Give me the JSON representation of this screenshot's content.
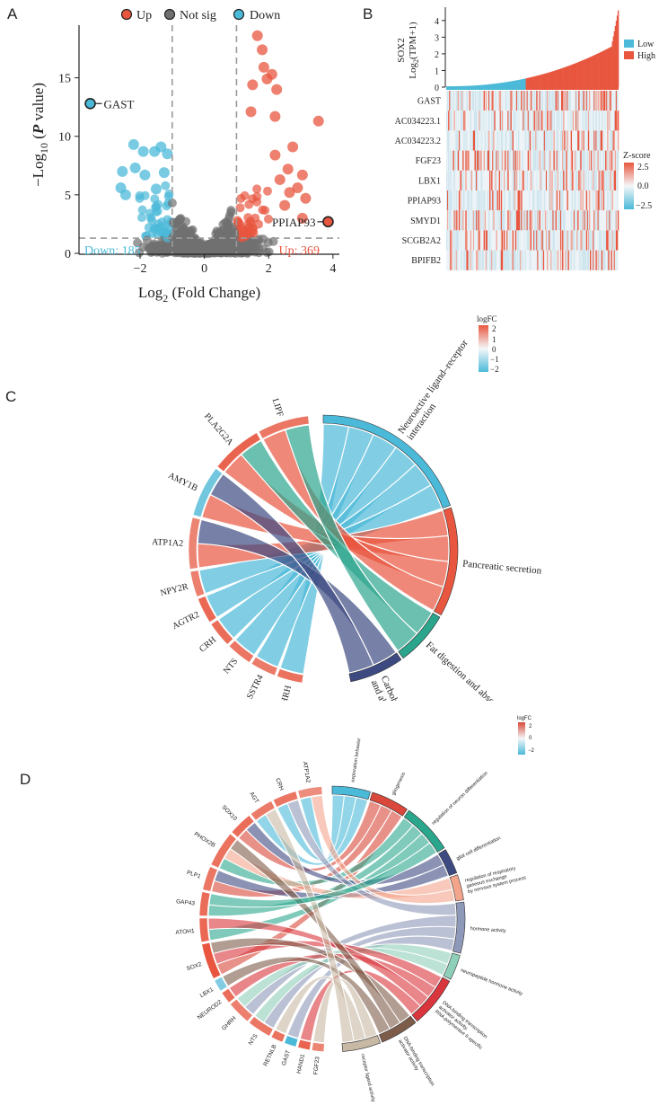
{
  "panels": {
    "a": "A",
    "b": "B",
    "c": "C",
    "d": "D"
  },
  "chart_data": [
    {
      "type": "scatter",
      "title": "",
      "legend": [
        "Up",
        "Not sig",
        "Down"
      ],
      "colors": {
        "up": "#e8563f",
        "notsig": "#707070",
        "down": "#4bb9d8"
      },
      "xlabel_main": "Log",
      "xlabel_sub": "2",
      "xlabel_rest": " (Fold Change)",
      "ylabel_pre": "−Log",
      "ylabel_sub": "10",
      "ylabel_open": " (",
      "ylabel_p": "P",
      "ylabel_post": " value)",
      "xlim": [
        -3.9,
        4.2
      ],
      "ylim": [
        0,
        19.5
      ],
      "xticks": [
        -2,
        0,
        2,
        4
      ],
      "xtick_labels": [
        "−2",
        "0",
        "2",
        "4"
      ],
      "yticks": [
        0,
        5,
        10,
        15
      ],
      "ytick_labels": [
        "0",
        "5",
        "10",
        "15"
      ],
      "fc_cutoff": 1,
      "p_cutoff": 1.3,
      "down_count_label": "Down: 185",
      "up_count_label": "Up: 369",
      "labeled_points": [
        {
          "label": "GAST",
          "x": -3.55,
          "y": 12.8,
          "group": "down"
        },
        {
          "label": "PPIAP93",
          "x": 3.85,
          "y": 2.7,
          "group": "up"
        }
      ],
      "highlight_points": [
        {
          "x": 1.65,
          "y": 18.6
        },
        {
          "x": 1.8,
          "y": 17.4
        },
        {
          "x": 1.85,
          "y": 15.9
        },
        {
          "x": 2.1,
          "y": 15.3
        },
        {
          "x": 1.95,
          "y": 14.9
        },
        {
          "x": 1.5,
          "y": 14.4
        },
        {
          "x": 2.25,
          "y": 14.0
        },
        {
          "x": 3.55,
          "y": 11.3
        },
        {
          "x": 2.2,
          "y": 11.7
        },
        {
          "x": 1.45,
          "y": 12.1
        },
        {
          "x": 2.75,
          "y": 9.1
        },
        {
          "x": 2.6,
          "y": 7.2
        },
        {
          "x": 3.05,
          "y": 6.7
        },
        {
          "x": 2.35,
          "y": 6.3
        },
        {
          "x": 2.9,
          "y": 5.6
        },
        {
          "x": 2.65,
          "y": 5.2
        },
        {
          "x": 3.15,
          "y": 4.7
        },
        {
          "x": 2.5,
          "y": 4.1
        },
        {
          "x": 3.05,
          "y": 3.0
        },
        {
          "x": 2.2,
          "y": 8.4
        },
        {
          "x": -1.35,
          "y": 9.1
        },
        {
          "x": -1.15,
          "y": 8.5
        },
        {
          "x": -1.55,
          "y": 8.7
        },
        {
          "x": -2.2,
          "y": 9.3
        },
        {
          "x": -1.9,
          "y": 8.7
        },
        {
          "x": -2.15,
          "y": 7.3
        },
        {
          "x": -2.55,
          "y": 7.0
        },
        {
          "x": -1.85,
          "y": 6.7
        },
        {
          "x": -2.6,
          "y": 5.6
        },
        {
          "x": -2.45,
          "y": 5.0
        },
        {
          "x": -1.5,
          "y": 5.5
        },
        {
          "x": -1.25,
          "y": 6.9
        }
      ]
    },
    {
      "type": "heatmap",
      "top_ylabel_gene": "SOX2",
      "top_ylabel_pre": "Log",
      "top_ylabel_sub": "2",
      "top_ylabel_post": "(TPM+1)",
      "top_yticks": [
        0,
        1,
        2,
        3,
        4
      ],
      "top_ylim": [
        0,
        4.8
      ],
      "low_fraction": 0.46,
      "legend_groups": [
        "Low",
        "High"
      ],
      "group_colors": [
        "#4bb9d8",
        "#e8563f"
      ],
      "rows": [
        "GAST",
        "AC034223.1",
        "AC034223.2",
        "FGF23",
        "LBX1",
        "PPIAP93",
        "SMYD1",
        "SCGB2A2",
        "BPIFB2"
      ],
      "colorbar_title": "Z-score",
      "colorbar_ticks": [
        2.5,
        0.0,
        -2.5
      ],
      "colorbar_tick_labels": [
        "2.5",
        "0.0",
        "−2.5"
      ],
      "n_samples": 180
    },
    {
      "type": "chord",
      "terms": [
        {
          "name": "Neuroactive ligand–receptor interaction",
          "name_line1": "Neuroactive ligand–receptor",
          "name_line2": "interaction",
          "color": "#4bb9d8"
        },
        {
          "name": "Pancreatic secretion",
          "name_line1": "Pancreatic secretion",
          "name_line2": "",
          "color": "#e8563f"
        },
        {
          "name": "Fat digestion and absorption",
          "name_line1": "Fat digestion and absorption",
          "name_line2": "",
          "color": "#2ca58d"
        },
        {
          "name": "Carbohydrate digest and absorption",
          "name_line1": "Carbohydrate digest",
          "name_line2": "and absorption",
          "color": "#3d4a82"
        }
      ],
      "genes": [
        {
          "name": "GHRH",
          "logFC": 1.6
        },
        {
          "name": "SSTR4",
          "logFC": 1.4
        },
        {
          "name": "NTS",
          "logFC": 1.5
        },
        {
          "name": "CRH",
          "logFC": 1.7
        },
        {
          "name": "AGTR2",
          "logFC": 1.8
        },
        {
          "name": "NPY2R",
          "logFC": 1.3
        },
        {
          "name": "ATP1A2",
          "logFC": 1.2
        },
        {
          "name": "AMY1B",
          "logFC": -1.4
        },
        {
          "name": "PLA2G2A",
          "logFC": 1.9
        },
        {
          "name": "LIPF",
          "logFC": 1.5
        }
      ],
      "links": [
        {
          "gene": "GHRH",
          "term": 0
        },
        {
          "gene": "SSTR4",
          "term": 0
        },
        {
          "gene": "NTS",
          "term": 0
        },
        {
          "gene": "CRH",
          "term": 0
        },
        {
          "gene": "AGTR2",
          "term": 0
        },
        {
          "gene": "NPY2R",
          "term": 0
        },
        {
          "gene": "ATP1A2",
          "term": 1
        },
        {
          "gene": "ATP1A2",
          "term": 3
        },
        {
          "gene": "AMY1B",
          "term": 1
        },
        {
          "gene": "AMY1B",
          "term": 3
        },
        {
          "gene": "PLA2G2A",
          "term": 1
        },
        {
          "gene": "PLA2G2A",
          "term": 2
        },
        {
          "gene": "LIPF",
          "term": 1
        },
        {
          "gene": "LIPF",
          "term": 2
        }
      ],
      "legend_title": "logFC",
      "legend_ticks": [
        2,
        1,
        0,
        -1,
        -2
      ],
      "legend_tick_labels": [
        "2",
        "1",
        "0",
        "−1",
        "−2"
      ]
    },
    {
      "type": "chord",
      "terms": [
        {
          "name": "exploration behavior",
          "color": "#4bb9d8"
        },
        {
          "name": "gliogenesis",
          "color": "#d9483b"
        },
        {
          "name": "regulation of neuron differentiation",
          "color": "#2aa68c"
        },
        {
          "name": "glial cell differentiation",
          "color": "#3d4a82"
        },
        {
          "name": "regulation of respiratory gaseous exchange by nervous system process",
          "color": "#f3a58c"
        },
        {
          "name": "hormone activity",
          "color": "#8e98b8"
        },
        {
          "name": "neuropeptide hormone activity",
          "color": "#8dcfb8"
        },
        {
          "name": "DNA-binding transcription activator activity, RNA polymerase II-specific",
          "color": "#d9353c"
        },
        {
          "name": "DNA-binding transcription activator activity",
          "color": "#7e5c4a"
        },
        {
          "name": "receptor ligand activity",
          "color": "#c8b9a4"
        }
      ],
      "term_lines": [
        [
          "exploration behavior"
        ],
        [
          "gliogenesis"
        ],
        [
          "regulation of neuron differentiation"
        ],
        [
          "glial cell differentiation"
        ],
        [
          "regulation of respiratory",
          "gaseous exchange",
          "by nervous system process"
        ],
        [
          "hormone activity"
        ],
        [
          "neuropeptide hormone activity"
        ],
        [
          "DNA-binding transcription",
          "activator activity,",
          "RNA polymerase II-specific"
        ],
        [
          "DNA-binding transcription",
          "activator activity"
        ],
        [
          "receptor ligand activity"
        ]
      ],
      "genes": [
        {
          "name": "FGF23",
          "logFC": 1.2
        },
        {
          "name": "HAND1",
          "logFC": 1.9
        },
        {
          "name": "GAST",
          "logFC": -2.2
        },
        {
          "name": "RETNLB",
          "logFC": 1.6
        },
        {
          "name": "NTS",
          "logFC": 1.5
        },
        {
          "name": "GHRH",
          "logFC": 1.3
        },
        {
          "name": "NEUROD2",
          "logFC": 1.7
        },
        {
          "name": "LBX1",
          "logFC": -1.1
        },
        {
          "name": "SOX2",
          "logFC": 2.2
        },
        {
          "name": "ATOH1",
          "logFC": 1.8
        },
        {
          "name": "GAP43",
          "logFC": 1.7
        },
        {
          "name": "PLP1",
          "logFC": 1.5
        },
        {
          "name": "PHOX2B",
          "logFC": 1.6
        },
        {
          "name": "SOX10",
          "logFC": 1.7
        },
        {
          "name": "AGT",
          "logFC": 1.4
        },
        {
          "name": "CRH",
          "logFC": 1.5
        },
        {
          "name": "ATP1A2",
          "logFC": 1.0
        }
      ],
      "links": [
        {
          "gene": "ATP1A2",
          "term": 0
        },
        {
          "gene": "CRH",
          "term": 0
        },
        {
          "gene": "AGT",
          "term": 0
        },
        {
          "gene": "SOX10",
          "term": 1
        },
        {
          "gene": "PLP1",
          "term": 1
        },
        {
          "gene": "SOX2",
          "term": 1
        },
        {
          "gene": "PHOX2B",
          "term": 2
        },
        {
          "gene": "GAP43",
          "term": 2
        },
        {
          "gene": "ATOH1",
          "term": 2
        },
        {
          "gene": "SOX10",
          "term": 3
        },
        {
          "gene": "PLP1",
          "term": 3
        },
        {
          "gene": "PHOX2B",
          "term": 4
        },
        {
          "gene": "ATP1A2",
          "term": 4
        },
        {
          "gene": "CRH",
          "term": 5
        },
        {
          "gene": "GHRH",
          "term": 5
        },
        {
          "gene": "NTS",
          "term": 5
        },
        {
          "gene": "GAST",
          "term": 5
        },
        {
          "gene": "NTS",
          "term": 6
        },
        {
          "gene": "GHRH",
          "term": 6
        },
        {
          "gene": "SOX2",
          "term": 7
        },
        {
          "gene": "NEUROD2",
          "term": 7
        },
        {
          "gene": "ATOH1",
          "term": 7
        },
        {
          "gene": "HAND1",
          "term": 7
        },
        {
          "gene": "SOX2",
          "term": 8
        },
        {
          "gene": "PHOX2B",
          "term": 8
        },
        {
          "gene": "LBX1",
          "term": 8
        },
        {
          "gene": "FGF23",
          "term": 9
        },
        {
          "gene": "RETNLB",
          "term": 9
        },
        {
          "gene": "AGT",
          "term": 9
        },
        {
          "gene": "GAP43",
          "term": 2
        }
      ],
      "legend_title": "logFC",
      "legend_ticks": [
        2,
        0,
        -2
      ],
      "legend_tick_labels": [
        "2",
        "0",
        "−2"
      ]
    }
  ]
}
